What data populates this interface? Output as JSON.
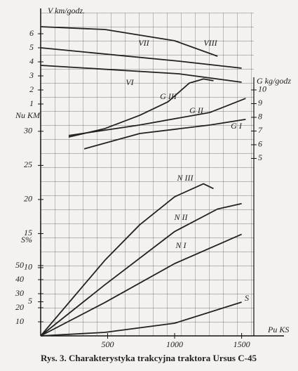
{
  "chart_data": {
    "type": "line",
    "title": "Rys. 3. Charakterystyka trakcyjna traktora Ursus C-45",
    "x_label": "Pu KS",
    "y_label": "Nu KM",
    "y2_label": "G kg/godz",
    "y3_label": "V km/godz.",
    "y4_label": "S%",
    "xlim": [
      0,
      1790
    ],
    "xticks": [
      500,
      1000,
      1500
    ],
    "ylim": [
      0,
      47.4
    ],
    "yticks": [
      5,
      10,
      15,
      20,
      25,
      30
    ],
    "y2lim": [
      -7.95,
      15.64
    ],
    "y2ticks": [
      5,
      6,
      7,
      8,
      9,
      10
    ],
    "y3lim": [
      -15.5,
      7.5
    ],
    "y3ticks": [
      1,
      2,
      3,
      4,
      5,
      6
    ],
    "y4lim": [
      0,
      230
    ],
    "y4ticks": [
      10,
      20,
      30,
      40,
      50
    ],
    "grid": true,
    "series": [
      {
        "name": "VIII",
        "axis": "y3",
        "color": "#222",
        "x": [
          0,
          480,
          1000,
          1320
        ],
        "values": [
          6.5,
          6.3,
          5.5,
          4.4
        ]
      },
      {
        "name": "VII",
        "axis": "y3",
        "color": "#222",
        "x": [
          0,
          1030,
          1500
        ],
        "values": [
          5.0,
          4.05,
          3.55
        ]
      },
      {
        "name": "VI",
        "axis": "y3",
        "color": "#222",
        "x": [
          0,
          1030,
          1500
        ],
        "values": [
          3.75,
          3.15,
          2.55
        ]
      },
      {
        "name": "G III",
        "axis": "y2",
        "color": "#222",
        "x": [
          209,
          480,
          740,
          950,
          1110,
          1215,
          1290
        ],
        "values": [
          6.56,
          7.18,
          8.15,
          9.13,
          10.5,
          10.8,
          10.67
        ]
      },
      {
        "name": "G II",
        "axis": "y2",
        "color": "#222",
        "x": [
          209,
          740,
          1265,
          1530
        ],
        "values": [
          6.67,
          7.44,
          8.36,
          9.38
        ]
      },
      {
        "name": "G I",
        "axis": "y2",
        "color": "#222",
        "x": [
          325,
          740,
          1265,
          1530
        ],
        "values": [
          5.7,
          6.82,
          7.44,
          7.85
        ]
      },
      {
        "name": "N III",
        "color": "#222",
        "x": [
          0,
          480,
          740,
          1000,
          1215,
          1290
        ],
        "values": [
          0,
          11.1,
          16.3,
          20.4,
          22.3,
          21.6
        ]
      },
      {
        "name": "N II",
        "color": "#222",
        "x": [
          0,
          480,
          1000,
          1320,
          1500
        ],
        "values": [
          0,
          7.5,
          15.3,
          18.6,
          19.4
        ]
      },
      {
        "name": "N I",
        "color": "#222",
        "x": [
          0,
          480,
          1000,
          1500
        ],
        "values": [
          0,
          4.9,
          10.6,
          14.9
        ]
      },
      {
        "name": "S",
        "axis": "y4",
        "color": "#222",
        "x": [
          0,
          480,
          1000,
          1500
        ],
        "values": [
          0,
          2.5,
          9,
          24
        ]
      }
    ]
  }
}
